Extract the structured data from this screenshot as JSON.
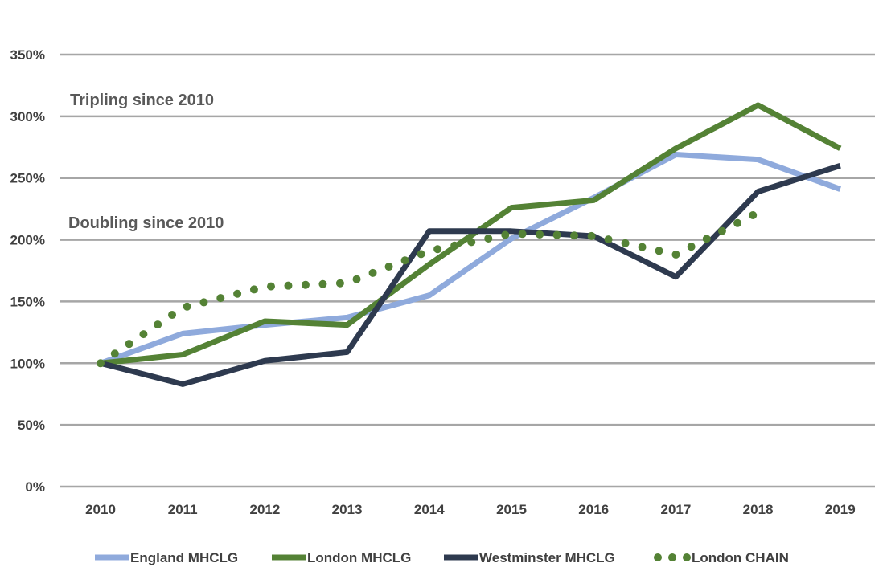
{
  "chart_data": {
    "type": "line",
    "x": [
      "2010",
      "2011",
      "2012",
      "2013",
      "2014",
      "2015",
      "2016",
      "2017",
      "2018",
      "2019"
    ],
    "ylim": [
      0,
      350
    ],
    "yticks": [
      "0%",
      "50%",
      "100%",
      "150%",
      "200%",
      "250%",
      "300%",
      "350%"
    ],
    "grid": true,
    "legend_position": "bottom",
    "annotations": [
      {
        "text": "Tripling since 2010",
        "y": 300
      },
      {
        "text": "Doubling since 2010",
        "y": 200
      }
    ],
    "series": [
      {
        "name": "England MHCLG",
        "style": "solid",
        "color": "#8FAADC",
        "values": [
          100,
          124,
          131,
          137,
          155,
          201,
          234,
          269,
          265,
          241
        ]
      },
      {
        "name": "London MHCLG",
        "style": "solid",
        "color": "#548235",
        "values": [
          100,
          107,
          134,
          131,
          180,
          226,
          232,
          274,
          309,
          274
        ]
      },
      {
        "name": "Westminster MHCLG",
        "style": "solid",
        "color": "#2E3A4F",
        "values": [
          100,
          83,
          102,
          109,
          207,
          207,
          203,
          170,
          239,
          260
        ]
      },
      {
        "name": "London CHAIN",
        "style": "dotted",
        "color": "#548235",
        "values": [
          100,
          145,
          162,
          165,
          191,
          205,
          203,
          188,
          222,
          null
        ]
      }
    ]
  }
}
